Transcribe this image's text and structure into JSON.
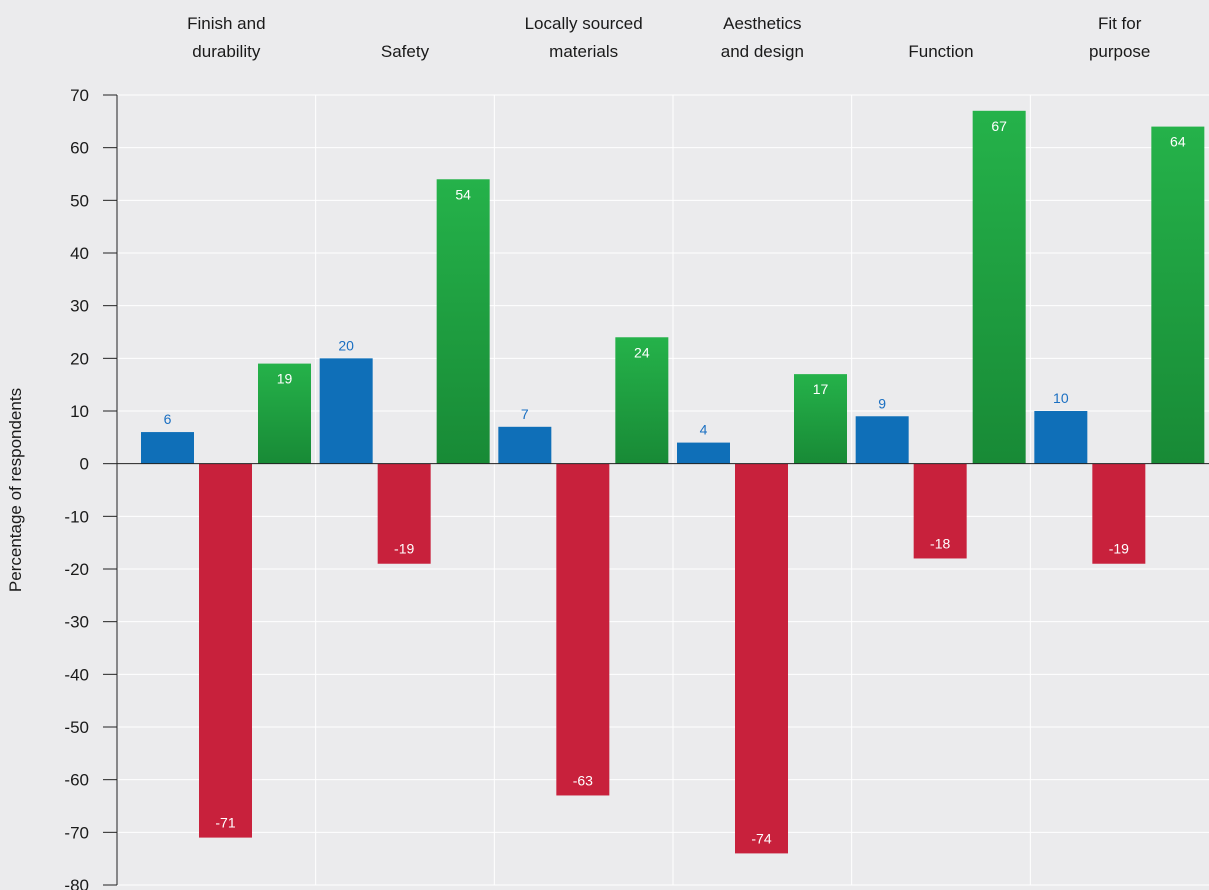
{
  "chart_data": {
    "type": "bar",
    "categories": [
      [
        "Finish and",
        "durability"
      ],
      [
        "Safety"
      ],
      [
        "Locally sourced",
        "materials"
      ],
      [
        "Aesthetics",
        "and design"
      ],
      [
        "Function"
      ],
      [
        "Fit for",
        "purpose"
      ]
    ],
    "series": [
      {
        "color": "#0f6fb8",
        "label_color": "#1a6fc2",
        "values": [
          6,
          20,
          7,
          4,
          9,
          10
        ]
      },
      {
        "color": "#c8213c",
        "label_color": "#ffffff",
        "values": [
          -71,
          -19,
          -63,
          -74,
          -18,
          -19
        ]
      },
      {
        "color": "#1e9e3e",
        "color_top": "#25b24a",
        "color_bottom": "#188a36",
        "label_color": "#ffffff",
        "values": [
          19,
          54,
          24,
          17,
          67,
          64
        ]
      }
    ],
    "ylabel": "Percentage of respondents",
    "ylim": [
      -80,
      70
    ],
    "yticks": [
      "70",
      "60",
      "50",
      "40",
      "30",
      "20",
      "10",
      "0",
      "-10",
      "-20",
      "-30",
      "-40",
      "-50",
      "-60",
      "-70",
      "-80"
    ],
    "grid": true
  }
}
